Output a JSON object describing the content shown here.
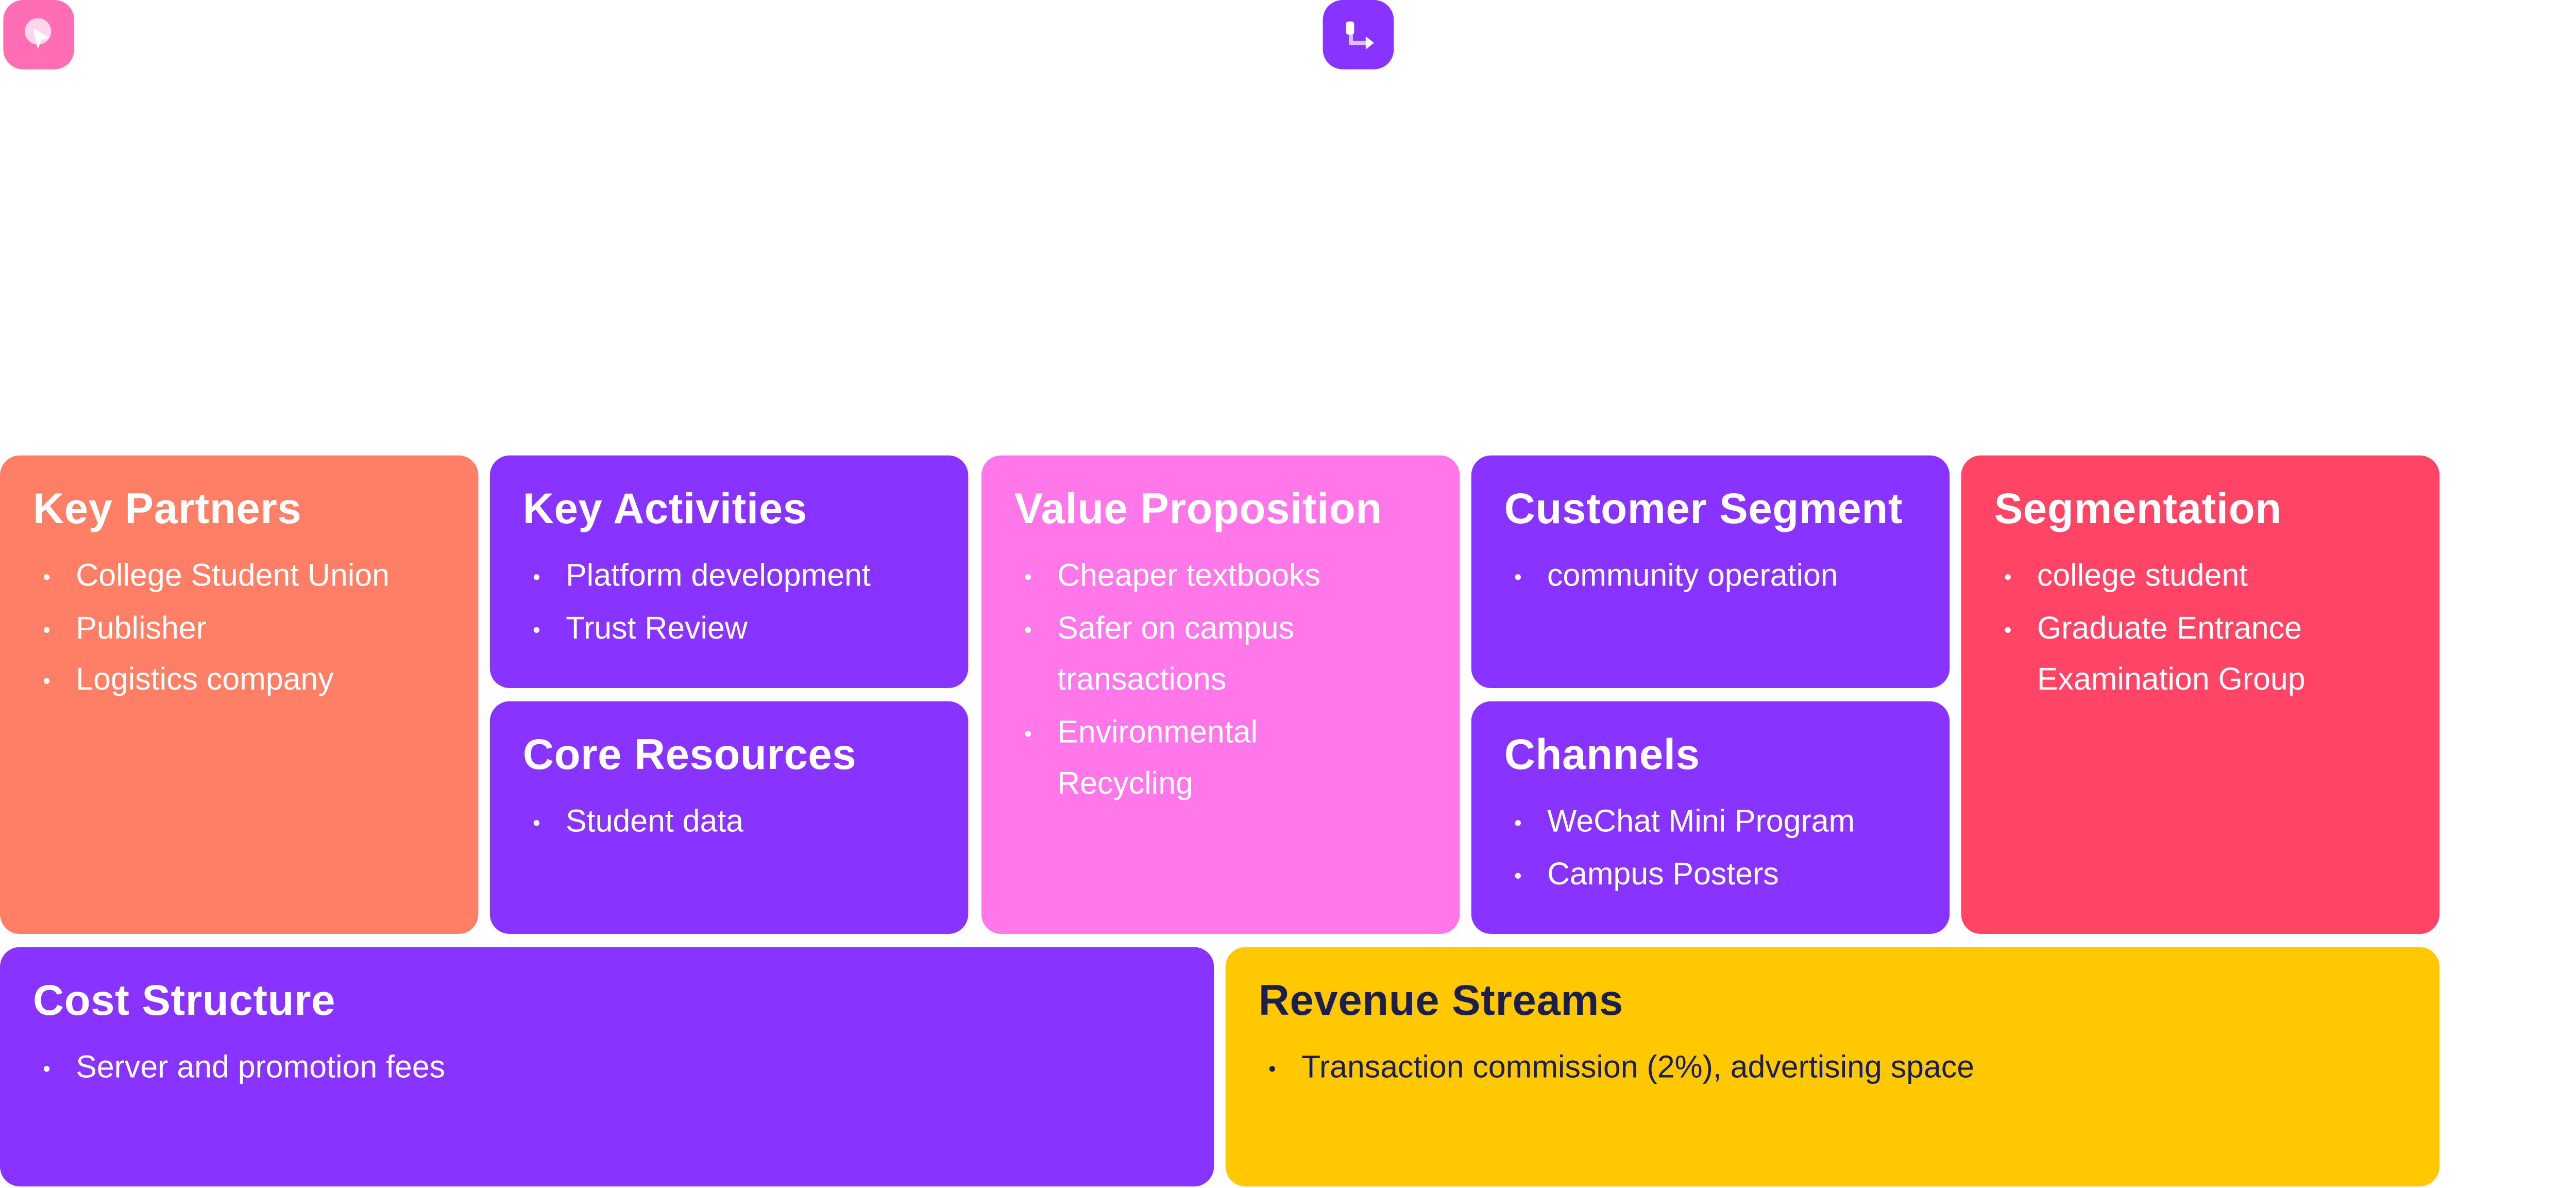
{
  "icons": [
    {
      "name": "pink-app-icon",
      "color": "#FF6EB4"
    },
    {
      "name": "purple-flow-icon",
      "color": "#8833FF"
    }
  ],
  "blocks": {
    "key_partners": {
      "title": "Key Partners",
      "color": "#FF7F66",
      "items": [
        "College Student Union",
        "Publisher",
        "Logistics company"
      ]
    },
    "key_activities": {
      "title": "Key Activities",
      "color": "#8833FF",
      "items": [
        "Platform development",
        "Trust Review"
      ]
    },
    "core_resources": {
      "title": "Core Resources",
      "color": "#8833FF",
      "items": [
        "Student data"
      ]
    },
    "value_proposition": {
      "title": "Value Proposition",
      "color": "#FF77E8",
      "items": [
        "Cheaper textbooks",
        "Safer on campus transactions",
        "Environmental Recycling"
      ]
    },
    "customer_segment": {
      "title": "Customer Segment",
      "color": "#8833FF",
      "items": [
        "community operation"
      ]
    },
    "channels": {
      "title": "Channels",
      "color": "#8833FF",
      "items": [
        "WeChat Mini Program",
        "Campus Posters"
      ]
    },
    "segmentation": {
      "title": "Segmentation",
      "color": "#FF4466",
      "items": [
        "college student",
        "Graduate Entrance Examination Group"
      ]
    },
    "cost_structure": {
      "title": "Cost Structure",
      "color": "#8833FF",
      "items": [
        "Server and promotion fees"
      ]
    },
    "revenue_streams": {
      "title": "Revenue Streams",
      "color": "#FFC800",
      "text_color": "#1B1F4A",
      "items": [
        "Transaction commission (2%), advertising space"
      ]
    }
  }
}
